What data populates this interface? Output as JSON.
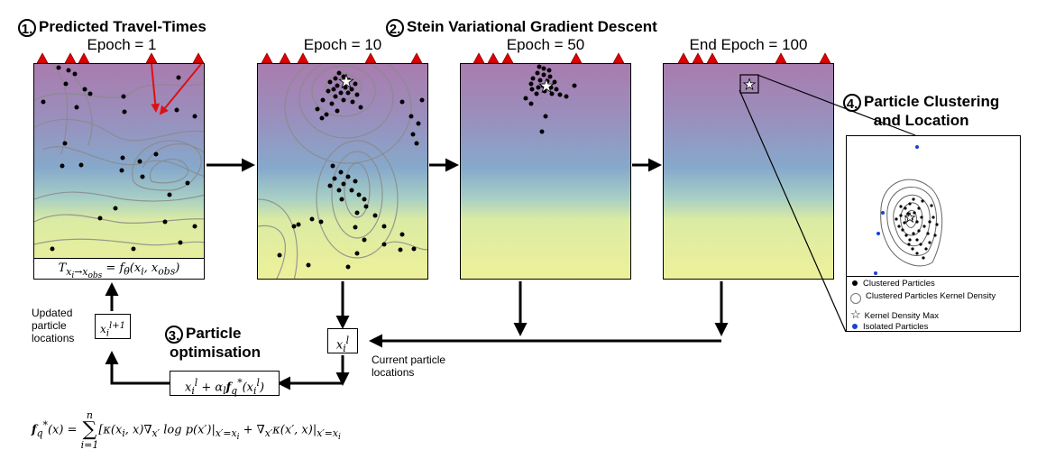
{
  "steps": [
    {
      "number": "1.",
      "title": "Predicted Travel-Times"
    },
    {
      "number": "2.",
      "title": "Stein Variational Gradient Descent"
    },
    {
      "number": "3.",
      "title_line1": "Particle",
      "title_line2": "optimisation"
    },
    {
      "number": "4.",
      "title_line1": "Particle Clustering",
      "title_line2": "and Location"
    }
  ],
  "panels": [
    {
      "epoch_label": "Epoch = 1"
    },
    {
      "epoch_label": "Epoch = 10"
    },
    {
      "epoch_label": "Epoch = 50"
    },
    {
      "epoch_label": "End Epoch = 100"
    }
  ],
  "math": {
    "travel_time": "T<sub>x<sub>i</sub>→x<sub>obs</sub></sub> = f<sub>θ</sub>(x<sub>i</sub>, x<sub>obs</sub>)",
    "updated": "x<sub>i</sub><sup>l+1</sup>",
    "current": "x<sub>i</sub><sup>l</sup>",
    "update_rule": "x<sub>i</sub><sup>l</sup> + α<sub>l</sub><b>f</b><sub>q</sub><sup>*</sup>(x<sub>i</sub><sup>l</sup>)"
  },
  "labels": {
    "updated_locations": [
      "Updated",
      "particle",
      "locations"
    ],
    "current_locations": [
      "Current particle",
      "locations"
    ]
  },
  "legend": {
    "clustered_particles": "Clustered Particles",
    "kernel_density": "Clustered Particles Kernel Density",
    "kernel_density_max": "Kernel Density Max",
    "isolated_particles": "Isolated Particles"
  },
  "colors": {
    "station_marker": "#e00000",
    "arrow_red": "#e01010",
    "isolated_blue": "#1a3fd8",
    "gradient_top": "#a87bb0",
    "gradient_mid": "#7fa9c9",
    "gradient_bottom": "#e6ee9a"
  },
  "formula_html": "<b>f</b><sub>q</sub><sup>*</sup>(x) = <span style='display:inline-block;vertical-align:middle;text-align:center;font-size:11px;line-height:11px;'>n<br><span style='font-size:22px;font-style:normal;line-height:22px;'>∑</span><br>i=1</span>[κ(x<sub>i</sub>, x)∇<sub>x′</sub> log p(x′)|<sub>x′=x<sub>i</sub></sub> + ∇<sub>x′</sub>κ(x′, x)|<sub>x′=x<sub>i</sub></sub>"
}
